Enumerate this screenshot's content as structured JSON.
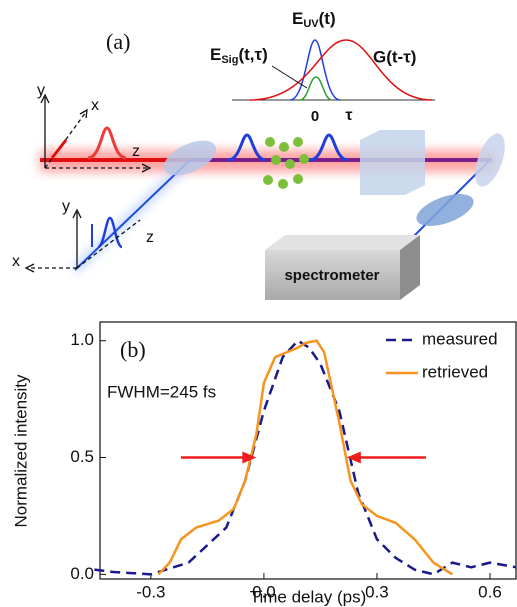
{
  "diagram": {
    "panel_label": "(a)",
    "inset": {
      "uv": {
        "main": "E",
        "sub": "UV",
        "tail": "(t)"
      },
      "sig": {
        "main": "E",
        "sub": "Sig",
        "tail": "(t,τ)"
      },
      "gate": "G(t-τ)",
      "zero": "0",
      "tau": "τ"
    },
    "axes_upper": {
      "y": "y",
      "x": "x",
      "z": "z"
    },
    "axes_lower": {
      "y": "y",
      "x": "x",
      "z": "z"
    },
    "spectrometer": "spectrometer"
  },
  "chart_data": {
    "type": "line",
    "panel_label": "(b)",
    "xlabel": "Time delay (ps)",
    "ylabel": "Normalized intensity",
    "annotation": "FWHM=245 fs",
    "arrows": {
      "y": 0.5,
      "left": [
        -0.22,
        -0.02
      ],
      "right": [
        0.43,
        0.22
      ],
      "color": "#ee1c1c"
    },
    "xlim": [
      -0.435,
      0.669
    ],
    "ylim": [
      -0.02,
      1.08
    ],
    "xticks": [
      -0.3,
      {
        "value": 0,
        "label": "0.0"
      },
      0.3,
      0.6
    ],
    "yticks": [
      {
        "value": 0,
        "label": "0.0"
      },
      0.5,
      {
        "value": 1,
        "label": "1.0"
      }
    ],
    "legend": "upper right",
    "series": [
      {
        "name": "measured",
        "color": "#1a1a8c",
        "dashed": true,
        "x": [
          -0.45,
          -0.4,
          -0.3,
          -0.2,
          -0.1,
          -0.05,
          0.0,
          0.05,
          0.09,
          0.12,
          0.15,
          0.2,
          0.25,
          0.3,
          0.35,
          0.4,
          0.45,
          0.5,
          0.55,
          0.6,
          0.67
        ],
        "values": [
          0.02,
          0.01,
          0.0,
          0.05,
          0.2,
          0.4,
          0.7,
          0.93,
          1.0,
          0.97,
          0.9,
          0.7,
          0.35,
          0.15,
          0.07,
          0.02,
          0.0,
          0.05,
          0.03,
          0.05,
          0.03
        ]
      },
      {
        "name": "retrieved",
        "color": "#f7941d",
        "dashed": false,
        "x": [
          -0.28,
          -0.25,
          -0.22,
          -0.18,
          -0.12,
          -0.08,
          -0.05,
          -0.02,
          0.0,
          0.03,
          0.06,
          0.09,
          0.11,
          0.14,
          0.16,
          0.18,
          0.2,
          0.23,
          0.26,
          0.3,
          0.35,
          0.4,
          0.45,
          0.5
        ],
        "values": [
          0.0,
          0.05,
          0.15,
          0.2,
          0.23,
          0.28,
          0.4,
          0.6,
          0.82,
          0.93,
          0.95,
          0.97,
          0.99,
          1.0,
          0.95,
          0.8,
          0.65,
          0.4,
          0.3,
          0.25,
          0.22,
          0.15,
          0.05,
          0.0
        ]
      }
    ]
  }
}
